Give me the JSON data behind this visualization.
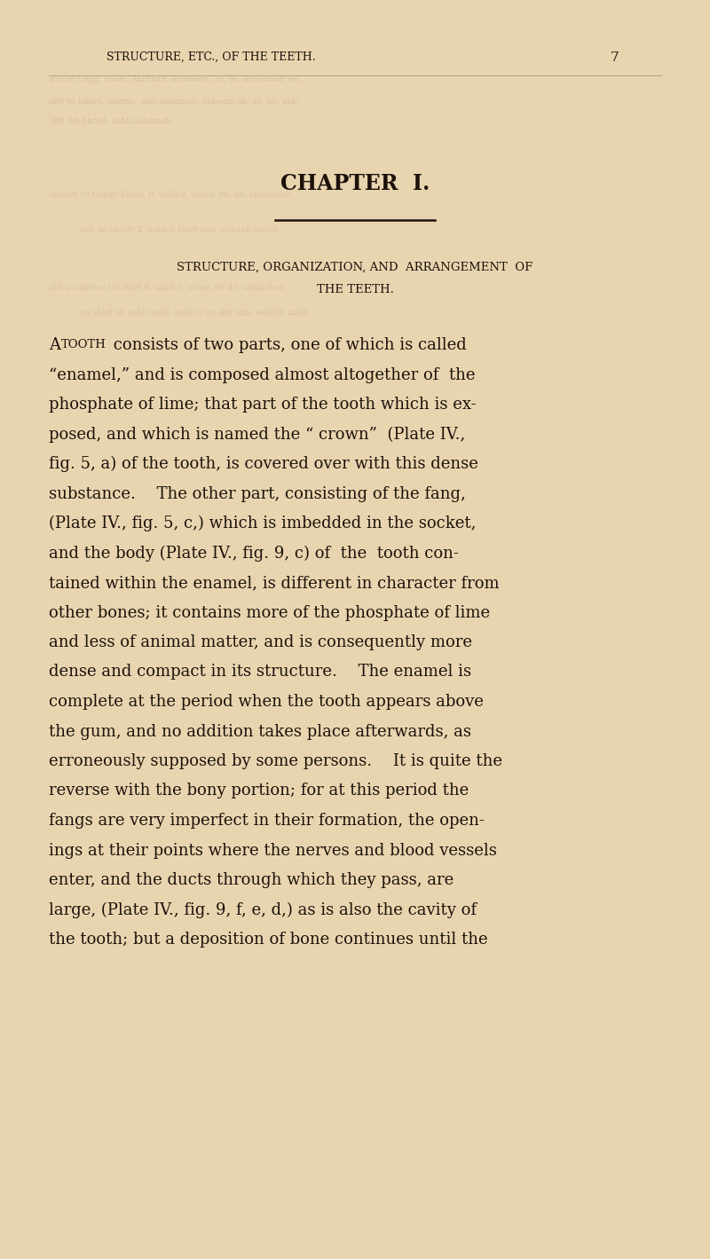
{
  "bg_color": "#e8d5b0",
  "text_color": "#1c120a",
  "ghost_text_color": "#c4aa82",
  "page_width": 8.0,
  "page_height": 14.19,
  "header_text": "STRUCTURE, ETC., OF THE TEETH.",
  "header_page_num": "7",
  "chapter_title": "CHAPTER  I.",
  "section_title_line1": "STRUCTURE, ORGANIZATION, AND  ARRANGEMENT  OF",
  "section_title_line2": "THE TEETH.",
  "body_lines": [
    "“enamel,” and is composed almost altogether of  the",
    "phosphate of lime; that part of the tooth which is ex-",
    "posed, and which is named the “ crown”  (Plate IV.,",
    "fig. 5, a) of the tooth, is covered over with this dense",
    "substance.  The other part, consisting of the fang,",
    "(Plate IV., fig. 5, c,) which is imbedded in the socket,",
    "and the body (Plate IV., fig. 9, c) of  the  tooth con-",
    "tained within the enamel, is different in character from",
    "other bones; it contains more of the phosphate of lime",
    "and less of animal matter, and is consequently more",
    "dense and compact in its structure.  The enamel is",
    "complete at the period when the tooth appears above",
    "the gum, and no addition takes place afterwards, as",
    "erroneously supposed by some persons.  It is quite the",
    "reverse with the bony portion; for at this period the",
    "fangs are very imperfect in their formation, the open-",
    "ings at their points where the nerves and blood vessels",
    "enter, and the ducts through which they pass, are",
    "large, (Plate IV., fig. 9, f, e, d,) as is also the cavity of",
    "the tooth; but a deposition of bone continues until the"
  ]
}
